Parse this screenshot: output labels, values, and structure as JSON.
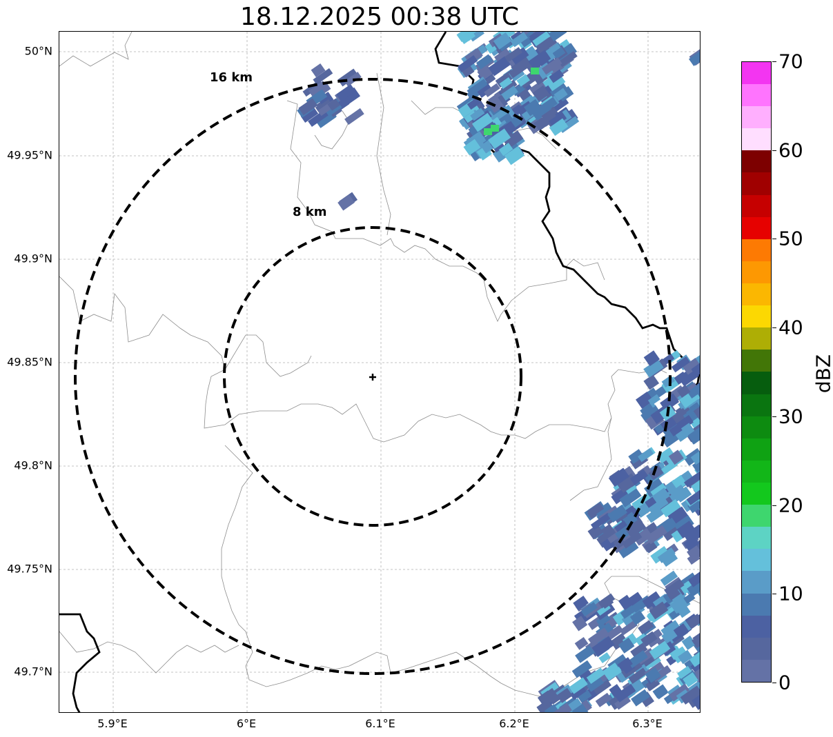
{
  "title": "18.12.2025 00:38 UTC",
  "map": {
    "lat_ticks": [
      "50°N",
      "49.95°N",
      "49.9°N",
      "49.85°N",
      "49.8°N",
      "49.75°N",
      "49.7°N"
    ],
    "lon_ticks": [
      "5.9°E",
      "6°E",
      "6.1°E",
      "6.2°E",
      "6.3°E"
    ],
    "rings": [
      {
        "label": "8 km",
        "radius_km": 8
      },
      {
        "label": "16 km",
        "radius_km": 16
      }
    ],
    "radar_site": {
      "lat": 49.844,
      "lon": 6.095
    }
  },
  "colorbar": {
    "unit": "dBZ",
    "tick_labels": [
      "0",
      "10",
      "20",
      "30",
      "40",
      "50",
      "60",
      "70"
    ],
    "colors": [
      "#6472a6",
      "#56679e",
      "#4c61a2",
      "#4b7ab0",
      "#5a9cc8",
      "#64c0db",
      "#5dd3c4",
      "#3ed66e",
      "#13c81d",
      "#12b618",
      "#0fa213",
      "#0d8b10",
      "#0a7510",
      "#065d0e",
      "#427607",
      "#aeae05",
      "#fcd802",
      "#fbb701",
      "#fd9802",
      "#fd7a03",
      "#e60100",
      "#c60000",
      "#a00000",
      "#7d0000",
      "#ffdeff",
      "#ffaffe",
      "#ff74fe",
      "#f335f1"
    ]
  }
}
